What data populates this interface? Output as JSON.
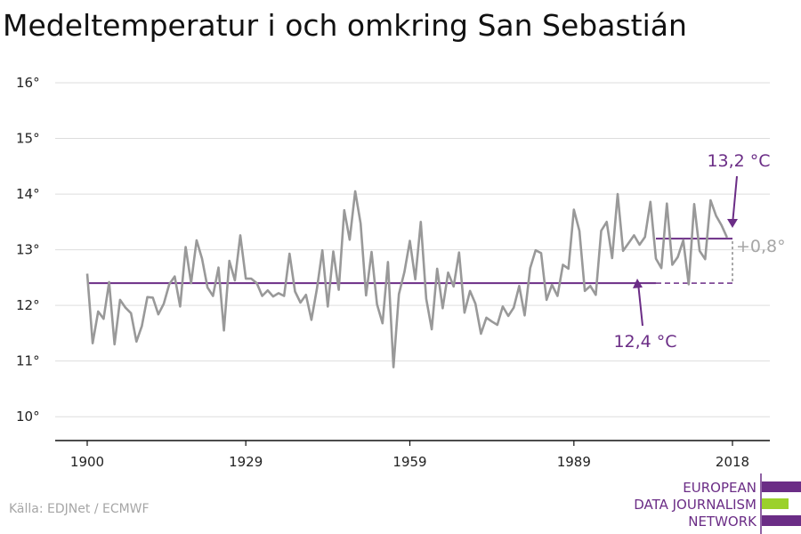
{
  "colors": {
    "series": "#999999",
    "baseline": "#6b2d86",
    "diff": "#a6a6a6",
    "grid": "#dddddd",
    "logo_purple": "#6b2d86",
    "logo_green": "#9bd12b"
  },
  "chart_data": {
    "type": "line",
    "title": "Medeltemperatur i och omkring San Sebastián",
    "xlabel": "",
    "ylabel": "",
    "xlim": [
      1900,
      2018
    ],
    "ylim": [
      9.3,
      16.3
    ],
    "x_ticks": [
      {
        "value": 1900,
        "label": "1900"
      },
      {
        "value": 1929,
        "label": "1929"
      },
      {
        "value": 1959,
        "label": "1959"
      },
      {
        "value": 1989,
        "label": "1989"
      },
      {
        "value": 2018,
        "label": "2018"
      }
    ],
    "y_ticks": [
      {
        "value": 10,
        "label": "10°"
      },
      {
        "value": 11,
        "label": "11°"
      },
      {
        "value": 12,
        "label": "12°"
      },
      {
        "value": 13,
        "label": "13°"
      },
      {
        "value": 14,
        "label": "14°"
      },
      {
        "value": 15,
        "label": "15°"
      },
      {
        "value": 16,
        "label": "16°"
      }
    ],
    "grid": true,
    "series": [
      {
        "x_start": 1900,
        "x_step": 1,
        "values": [
          12.57,
          11.32,
          11.89,
          11.76,
          12.42,
          11.3,
          12.1,
          11.96,
          11.86,
          11.35,
          11.63,
          12.15,
          12.14,
          11.84,
          12.03,
          12.38,
          12.52,
          11.98,
          13.05,
          12.4,
          13.17,
          12.84,
          12.32,
          12.17,
          12.68,
          11.55,
          12.8,
          12.45,
          13.26,
          12.48,
          12.48,
          12.4,
          12.17,
          12.27,
          12.16,
          12.22,
          12.17,
          12.93,
          12.25,
          12.05,
          12.19,
          11.74,
          12.3,
          12.99,
          11.98,
          12.97,
          12.28,
          13.71,
          13.18,
          14.05,
          13.47,
          12.18,
          12.96,
          12.02,
          11.68,
          12.78,
          10.89,
          12.2,
          12.6,
          13.16,
          12.47,
          13.5,
          12.12,
          11.57,
          12.66,
          11.95,
          12.59,
          12.34,
          12.95,
          11.87,
          12.26,
          12.03,
          11.49,
          11.78,
          11.71,
          11.65,
          11.98,
          11.81,
          11.96,
          12.35,
          11.82,
          12.67,
          12.99,
          12.94,
          12.1,
          12.37,
          12.17,
          12.73,
          12.66,
          13.72,
          13.34,
          12.26,
          12.35,
          12.19,
          13.34,
          13.5,
          12.85,
          14.0,
          12.98,
          13.12,
          13.26,
          13.09,
          13.23,
          13.86,
          12.84,
          12.67,
          13.83,
          12.73,
          12.87,
          13.17,
          12.38,
          13.82,
          12.98,
          12.83,
          13.89,
          13.61,
          13.44,
          13.22
        ]
      }
    ],
    "baselines": [
      {
        "value": 12.4,
        "x_start": 1900,
        "x_end": 2004,
        "dashed_to": 2018
      },
      {
        "value": 13.2,
        "x_start": 2004,
        "x_end": 2018
      }
    ],
    "annotations": {
      "recent_label": "13,2 °C",
      "base_label": "12,4 °C",
      "diff_label": "+0,8°"
    },
    "source": "Källa: EDJNet / ECMWF"
  },
  "logo": {
    "lines": [
      "EUROPEAN",
      "DATA JOURNALISM",
      "NETWORK"
    ]
  }
}
